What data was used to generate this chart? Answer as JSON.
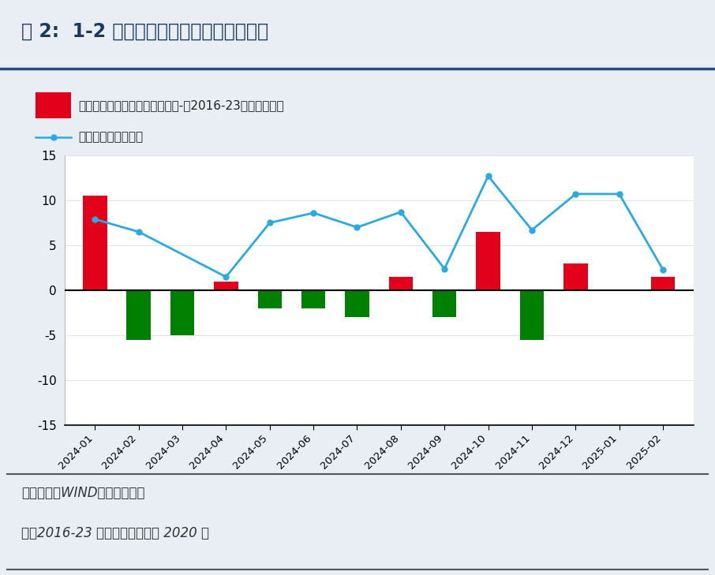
{
  "title": "图 2:  1-2 月份出口增速高于历史同期水平",
  "categories": [
    "2024-01",
    "2024-02",
    "2024-03",
    "2024-04",
    "2024-05",
    "2024-06",
    "2024-07",
    "2024-08",
    "2024-09",
    "2024-10",
    "2024-11",
    "2024-12",
    "2025-01",
    "2025-02"
  ],
  "bar_values": [
    10.5,
    -5.5,
    -5.0,
    1.0,
    -2.0,
    -2.0,
    -3.0,
    1.5,
    -3.0,
    6.5,
    -5.5,
    3.0,
    0.0,
    1.5
  ],
  "bar_colors": [
    "#e2001a",
    "#008000",
    "#008000",
    "#e2001a",
    "#008000",
    "#008000",
    "#008000",
    "#e2001a",
    "#008000",
    "#e2001a",
    "#008000",
    "#e2001a",
    "#e2001a",
    "#e2001a"
  ],
  "line_values": [
    7.9,
    6.5,
    null,
    1.5,
    7.5,
    8.6,
    7.0,
    8.7,
    2.4,
    12.7,
    6.7,
    10.7,
    10.7,
    2.3
  ],
  "line_color": "#29aae1",
  "ylim": [
    -15,
    15
  ],
  "yticks": [
    -15,
    -10,
    -5,
    0,
    5,
    10,
    15
  ],
  "legend_bar_label": "与历史均值偏离：当月环比增速-（2016-23年同期均值）",
  "legend_line_label": "出口金额：当月同比",
  "bar_legend_color": "#e2001a",
  "source_text": "资料来源：WIND，财信研究院",
  "note_text": "注：2016-23 年同期均值不包括 2020 年",
  "outer_bg_color": "#e8eef4",
  "plot_bg_color": "#ffffff",
  "title_color": "#1a3a5c"
}
